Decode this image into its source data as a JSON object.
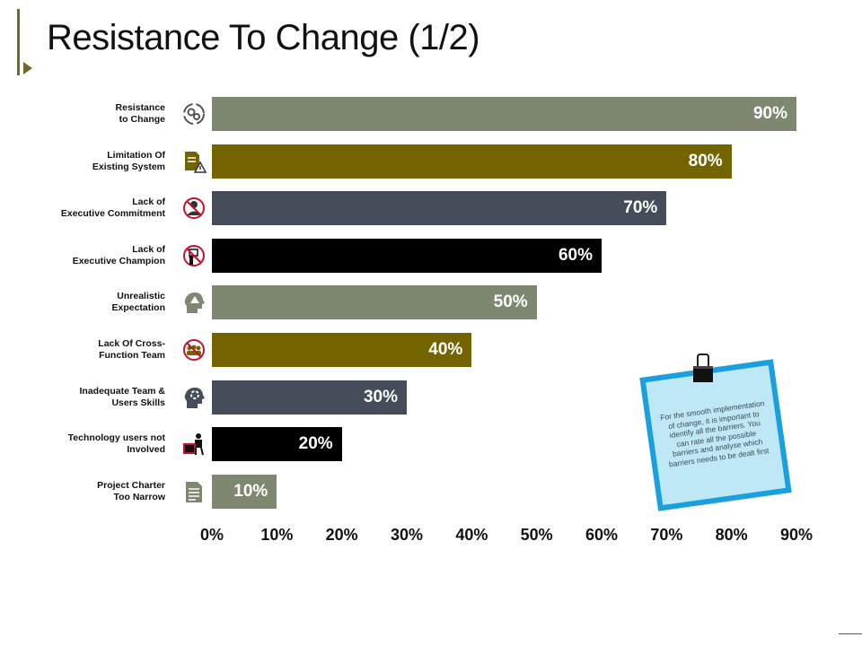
{
  "title": "Resistance To Change (1/2)",
  "chart_data": {
    "type": "bar",
    "orientation": "horizontal",
    "categories": [
      "Resistance\nto Change",
      "Limitation Of\nExisting System",
      "Lack of\nExecutive Commitment",
      "Lack of\nExecutive Champion",
      "Unrealistic\nExpectation",
      "Lack Of Cross-\nFunction Team",
      "Inadequate Team &\nUsers Skills",
      "Technology users not\nInvolved",
      "Project Charter\nToo Narrow"
    ],
    "values": [
      90,
      80,
      70,
      60,
      50,
      40,
      30,
      20,
      10
    ],
    "value_labels": [
      "90%",
      "80%",
      "70%",
      "60%",
      "50%",
      "40%",
      "30%",
      "20%",
      "10%"
    ],
    "bar_colors": [
      "#7e8870",
      "#736400",
      "#454d5b",
      "#000000",
      "#7e8870",
      "#736400",
      "#454d5b",
      "#000000",
      "#7e8870"
    ],
    "icons": [
      "gears-cycle-icon",
      "document-warning-icon",
      "no-person-icon",
      "no-presenter-icon",
      "head-warning-icon",
      "no-team-icon",
      "head-gear-icon",
      "person-desk-icon",
      "document-icon"
    ],
    "xlim": [
      0,
      90
    ],
    "x_ticks": [
      "0%",
      "10%",
      "20%",
      "30%",
      "40%",
      "50%",
      "60%",
      "70%",
      "80%",
      "90%"
    ],
    "grid": false
  },
  "note": {
    "text": "For the smooth implementation of change, it is important to identify all the barriers. You can rate all the possible barriers and analyse which barriers needs to be dealt first"
  },
  "colors": {
    "accent": "#6f6a2a",
    "note_blue": "#1aa0de",
    "note_paper": "#bfe8f7"
  }
}
